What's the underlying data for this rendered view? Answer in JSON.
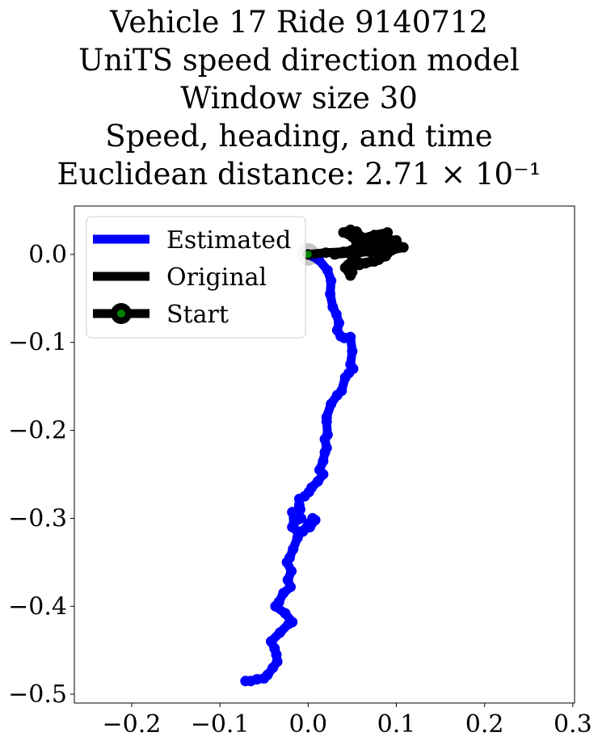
{
  "chart_data": {
    "type": "line",
    "title_lines": [
      "Vehicle 17 Ride 9140712",
      "UniTS speed direction model",
      "Window size 30",
      "Speed, heading, and time",
      "Euclidean distance: 2.71 × 10⁻¹"
    ],
    "xlabel": "",
    "ylabel": "",
    "xlim": [
      -0.265,
      0.302
    ],
    "ylim": [
      -0.51,
      0.055
    ],
    "xticks": [
      -0.2,
      -0.1,
      0.0,
      0.1,
      0.2,
      0.3
    ],
    "yticks": [
      0.0,
      -0.1,
      -0.2,
      -0.3,
      -0.4,
      -0.5
    ],
    "xtick_labels": [
      "−0.2",
      "−0.1",
      "0.0",
      "0.1",
      "0.2",
      "0.3"
    ],
    "ytick_labels": [
      "0.0",
      "−0.1",
      "−0.2",
      "−0.3",
      "−0.4",
      "−0.5"
    ],
    "grid": false,
    "legend_position": "upper-left",
    "series": [
      {
        "name": "Estimated",
        "color": "#0000ff",
        "x": [
          0.0,
          0.012,
          0.022,
          0.026,
          0.025,
          0.028,
          0.032,
          0.035,
          0.033,
          0.037,
          0.041,
          0.048,
          0.05,
          0.048,
          0.051,
          0.046,
          0.042,
          0.038,
          0.033,
          0.026,
          0.021,
          0.021,
          0.022,
          0.019,
          0.021,
          0.019,
          0.017,
          0.013,
          0.017,
          0.011,
          0.004,
          0.001,
          -0.004,
          -0.01,
          -0.01,
          -0.009,
          -0.018,
          -0.016,
          -0.008,
          -0.016,
          -0.018,
          -0.012,
          -0.006,
          0.005,
          0.008,
          0.002,
          -0.008,
          -0.012,
          -0.017,
          -0.021,
          -0.024,
          -0.019,
          -0.023,
          -0.02,
          -0.028,
          -0.033,
          -0.037,
          -0.026,
          -0.018,
          -0.022,
          -0.032,
          -0.042,
          -0.038,
          -0.036,
          -0.035,
          -0.04,
          -0.046,
          -0.05,
          -0.058,
          -0.065,
          -0.071
        ],
        "y": [
          0.0,
          -0.006,
          -0.018,
          -0.03,
          -0.045,
          -0.06,
          -0.068,
          -0.078,
          -0.086,
          -0.093,
          -0.095,
          -0.094,
          -0.11,
          -0.125,
          -0.13,
          -0.135,
          -0.14,
          -0.155,
          -0.16,
          -0.17,
          -0.185,
          -0.19,
          -0.205,
          -0.21,
          -0.22,
          -0.225,
          -0.235,
          -0.245,
          -0.25,
          -0.258,
          -0.265,
          -0.27,
          -0.275,
          -0.278,
          -0.285,
          -0.29,
          -0.293,
          -0.3,
          -0.3,
          -0.305,
          -0.31,
          -0.315,
          -0.315,
          -0.3,
          -0.302,
          -0.31,
          -0.315,
          -0.322,
          -0.335,
          -0.345,
          -0.35,
          -0.36,
          -0.37,
          -0.378,
          -0.385,
          -0.395,
          -0.4,
          -0.408,
          -0.418,
          -0.42,
          -0.43,
          -0.44,
          -0.448,
          -0.455,
          -0.463,
          -0.47,
          -0.478,
          -0.482,
          -0.483,
          -0.485,
          -0.485
        ]
      },
      {
        "name": "Original",
        "color": "#000000",
        "x": [
          0.0,
          0.02,
          0.04,
          0.05,
          0.06,
          0.07,
          0.085,
          0.1,
          0.108,
          0.095,
          0.08,
          0.07,
          0.085,
          0.09,
          0.075,
          0.06,
          0.05,
          0.04,
          0.048,
          0.055,
          0.06,
          0.07,
          0.082,
          0.09,
          0.08,
          0.06,
          0.045,
          0.05,
          0.048,
          0.042,
          0.05,
          0.06,
          0.055,
          0.05,
          0.07,
          0.09,
          0.095,
          0.088,
          0.075,
          0.065,
          0.058,
          0.052,
          0.048,
          0.062,
          0.075,
          0.1,
          0.104,
          0.09,
          0.07,
          0.05,
          0.04,
          0.03,
          0.06
        ],
        "y": [
          0.0,
          0.002,
          0.003,
          0.005,
          0.008,
          0.01,
          0.012,
          0.01,
          0.008,
          0.005,
          0.012,
          0.016,
          0.02,
          0.025,
          0.022,
          0.018,
          0.02,
          0.025,
          0.028,
          0.026,
          0.02,
          0.012,
          0.006,
          0.002,
          -0.006,
          -0.01,
          -0.012,
          -0.02,
          -0.024,
          -0.015,
          -0.006,
          0.004,
          0.012,
          0.022,
          0.016,
          0.012,
          0.005,
          -0.002,
          -0.008,
          -0.01,
          -0.012,
          -0.004,
          0.004,
          0.012,
          0.02,
          0.016,
          0.008,
          0.004,
          0.003,
          0.002,
          0.002,
          0.0,
          0.003
        ]
      }
    ],
    "start_point": {
      "name": "Start",
      "x": 0.0,
      "y": 0.0,
      "marker_color": "#000000",
      "dot_color": "#008000"
    },
    "legend": {
      "entries": [
        {
          "label": "Estimated",
          "color": "#0000ff",
          "kind": "line"
        },
        {
          "label": "Original",
          "color": "#000000",
          "kind": "line"
        },
        {
          "label": "Start",
          "color": "#000000",
          "kind": "line-marker",
          "dot_color": "#008000"
        }
      ]
    }
  }
}
